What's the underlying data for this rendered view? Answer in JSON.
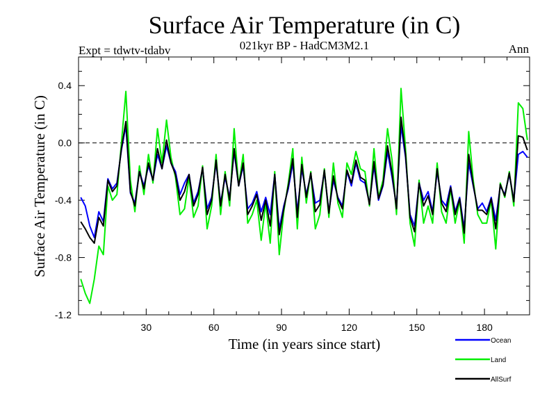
{
  "chart_data": {
    "type": "line",
    "title": "Surface Air Temperature (in C)",
    "subtitle": "021kyr BP - HadCM3M2.1",
    "expt_label": "Expt = tdwtv-tdabv",
    "season_label": "Ann",
    "xlabel": "Time (in years since start)",
    "ylabel": "Surface Air Temperature (in C)",
    "xlim": [
      0,
      200
    ],
    "ylim": [
      -1.2,
      0.6
    ],
    "xticks": [
      30,
      60,
      90,
      120,
      150,
      180
    ],
    "xtick_labels": [
      "30",
      "60",
      "90",
      "120",
      "150",
      "180"
    ],
    "yticks": [
      -1.2,
      -0.8,
      -0.4,
      0.0,
      0.4
    ],
    "ytick_labels": [
      "-1.2",
      "-0.8",
      "-0.4",
      "0.0",
      "0.4"
    ],
    "reference_line": 0.0,
    "x": [
      1,
      3,
      5,
      7,
      9,
      11,
      13,
      15,
      17,
      19,
      21,
      23,
      25,
      27,
      29,
      31,
      33,
      35,
      37,
      39,
      41,
      43,
      45,
      47,
      49,
      51,
      53,
      55,
      57,
      59,
      61,
      63,
      65,
      67,
      69,
      71,
      73,
      75,
      77,
      79,
      81,
      83,
      85,
      87,
      89,
      91,
      93,
      95,
      97,
      99,
      101,
      103,
      105,
      107,
      109,
      111,
      113,
      115,
      117,
      119,
      121,
      123,
      125,
      127,
      129,
      131,
      133,
      135,
      137,
      139,
      141,
      143,
      145,
      147,
      149,
      151,
      153,
      155,
      157,
      159,
      161,
      163,
      165,
      167,
      169,
      171,
      173,
      175,
      177,
      179,
      181,
      183,
      185,
      187,
      189,
      191,
      193,
      195,
      197,
      199
    ],
    "series": [
      {
        "name": "Ocean",
        "color": "#0000ff",
        "values": [
          -0.38,
          -0.44,
          -0.58,
          -0.66,
          -0.48,
          -0.55,
          -0.25,
          -0.32,
          -0.28,
          -0.05,
          0.12,
          -0.35,
          -0.42,
          -0.2,
          -0.3,
          -0.16,
          -0.26,
          -0.08,
          -0.18,
          -0.02,
          -0.14,
          -0.2,
          -0.36,
          -0.28,
          -0.22,
          -0.42,
          -0.34,
          -0.18,
          -0.46,
          -0.38,
          -0.14,
          -0.42,
          -0.24,
          -0.38,
          -0.06,
          -0.3,
          -0.16,
          -0.46,
          -0.42,
          -0.34,
          -0.48,
          -0.38,
          -0.5,
          -0.22,
          -0.6,
          -0.44,
          -0.32,
          -0.14,
          -0.48,
          -0.18,
          -0.36,
          -0.22,
          -0.42,
          -0.4,
          -0.2,
          -0.48,
          -0.26,
          -0.38,
          -0.44,
          -0.2,
          -0.3,
          -0.14,
          -0.26,
          -0.28,
          -0.42,
          -0.16,
          -0.4,
          -0.3,
          -0.06,
          -0.24,
          -0.44,
          0.12,
          -0.1,
          -0.5,
          -0.58,
          -0.28,
          -0.4,
          -0.34,
          -0.48,
          -0.2,
          -0.4,
          -0.44,
          -0.3,
          -0.48,
          -0.38,
          -0.6,
          -0.14,
          -0.3,
          -0.46,
          -0.42,
          -0.48,
          -0.38,
          -0.54,
          -0.3,
          -0.36,
          -0.22,
          -0.4,
          -0.08,
          -0.06,
          -0.1
        ]
      },
      {
        "name": "Land",
        "color": "#00ee00",
        "values": [
          -0.95,
          -1.05,
          -1.12,
          -0.95,
          -0.72,
          -0.78,
          -0.3,
          -0.4,
          -0.36,
          0.0,
          0.36,
          -0.26,
          -0.48,
          -0.16,
          -0.36,
          -0.08,
          -0.28,
          0.1,
          -0.14,
          0.16,
          -0.1,
          -0.24,
          -0.5,
          -0.46,
          -0.24,
          -0.52,
          -0.44,
          -0.16,
          -0.6,
          -0.44,
          -0.08,
          -0.5,
          -0.2,
          -0.44,
          0.1,
          -0.3,
          -0.08,
          -0.56,
          -0.5,
          -0.4,
          -0.68,
          -0.42,
          -0.7,
          -0.2,
          -0.78,
          -0.48,
          -0.28,
          -0.04,
          -0.6,
          -0.1,
          -0.42,
          -0.2,
          -0.6,
          -0.5,
          -0.18,
          -0.52,
          -0.14,
          -0.42,
          -0.52,
          -0.14,
          -0.22,
          -0.06,
          -0.18,
          -0.2,
          -0.44,
          -0.04,
          -0.38,
          -0.26,
          0.1,
          -0.12,
          -0.5,
          0.38,
          -0.04,
          -0.56,
          -0.72,
          -0.26,
          -0.56,
          -0.44,
          -0.56,
          -0.14,
          -0.48,
          -0.56,
          -0.32,
          -0.56,
          -0.4,
          -0.7,
          0.08,
          -0.26,
          -0.5,
          -0.56,
          -0.56,
          -0.4,
          -0.74,
          -0.28,
          -0.38,
          -0.2,
          -0.44,
          0.28,
          0.24,
          0.02
        ]
      },
      {
        "name": "AllSurf",
        "color": "#000000",
        "values": [
          -0.55,
          -0.6,
          -0.66,
          -0.7,
          -0.52,
          -0.58,
          -0.26,
          -0.34,
          -0.3,
          -0.04,
          0.15,
          -0.34,
          -0.44,
          -0.2,
          -0.32,
          -0.14,
          -0.26,
          -0.04,
          -0.18,
          0.02,
          -0.14,
          -0.22,
          -0.4,
          -0.34,
          -0.22,
          -0.44,
          -0.36,
          -0.17,
          -0.5,
          -0.4,
          -0.12,
          -0.44,
          -0.22,
          -0.4,
          -0.04,
          -0.3,
          -0.14,
          -0.5,
          -0.44,
          -0.36,
          -0.54,
          -0.4,
          -0.58,
          -0.22,
          -0.64,
          -0.46,
          -0.3,
          -0.11,
          -0.52,
          -0.15,
          -0.38,
          -0.21,
          -0.48,
          -0.43,
          -0.19,
          -0.49,
          -0.23,
          -0.39,
          -0.46,
          -0.19,
          -0.28,
          -0.12,
          -0.24,
          -0.26,
          -0.43,
          -0.13,
          -0.39,
          -0.29,
          -0.02,
          -0.21,
          -0.46,
          0.18,
          -0.08,
          -0.52,
          -0.62,
          -0.28,
          -0.44,
          -0.37,
          -0.5,
          -0.18,
          -0.42,
          -0.48,
          -0.31,
          -0.5,
          -0.39,
          -0.63,
          -0.08,
          -0.29,
          -0.47,
          -0.47,
          -0.5,
          -0.39,
          -0.6,
          -0.29,
          -0.37,
          -0.21,
          -0.41,
          0.05,
          0.04,
          -0.05
        ]
      }
    ],
    "legend": [
      "Ocean",
      "Land",
      "AllSurf"
    ],
    "legend_position": "bottom-right"
  }
}
